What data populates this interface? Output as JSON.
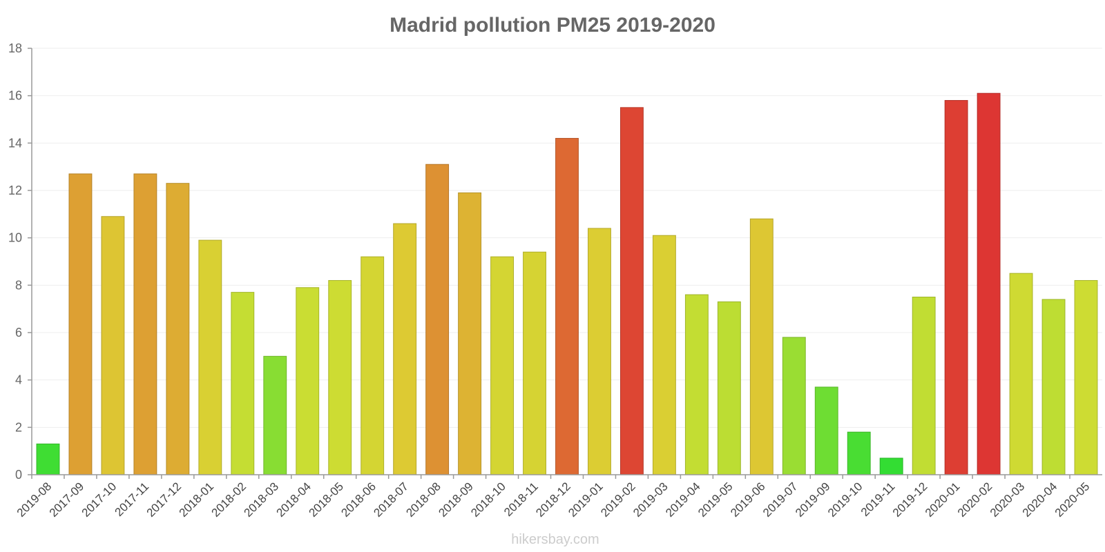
{
  "chart_data": {
    "type": "bar",
    "title": "Madrid pollution PM25 2019-2020",
    "xlabel": "",
    "ylabel": "",
    "ylim": [
      0,
      18
    ],
    "yticks": [
      0,
      2,
      4,
      6,
      8,
      10,
      12,
      14,
      16,
      18
    ],
    "categories": [
      "2019-08",
      "2017-09",
      "2017-10",
      "2017-11",
      "2017-12",
      "2018-01",
      "2018-02",
      "2018-03",
      "2018-04",
      "2018-05",
      "2018-06",
      "2018-07",
      "2018-08",
      "2018-09",
      "2018-10",
      "2018-11",
      "2018-12",
      "2019-01",
      "2019-02",
      "2019-03",
      "2019-04",
      "2019-05",
      "2019-06",
      "2019-07",
      "2019-09",
      "2019-10",
      "2019-11",
      "2019-12",
      "2020-01",
      "2020-02",
      "2020-03",
      "2020-04",
      "2020-05"
    ],
    "values": [
      1.3,
      12.7,
      10.9,
      12.7,
      12.3,
      9.9,
      7.7,
      5.0,
      7.9,
      8.2,
      9.2,
      10.6,
      13.1,
      11.9,
      9.2,
      9.4,
      14.2,
      10.4,
      15.5,
      10.1,
      7.6,
      7.3,
      10.8,
      5.8,
      3.7,
      1.8,
      0.7,
      7.5,
      15.8,
      16.1,
      8.5,
      7.4,
      8.2
    ],
    "grid": true,
    "legend": "none"
  },
  "watermark": "hikersbay.com"
}
